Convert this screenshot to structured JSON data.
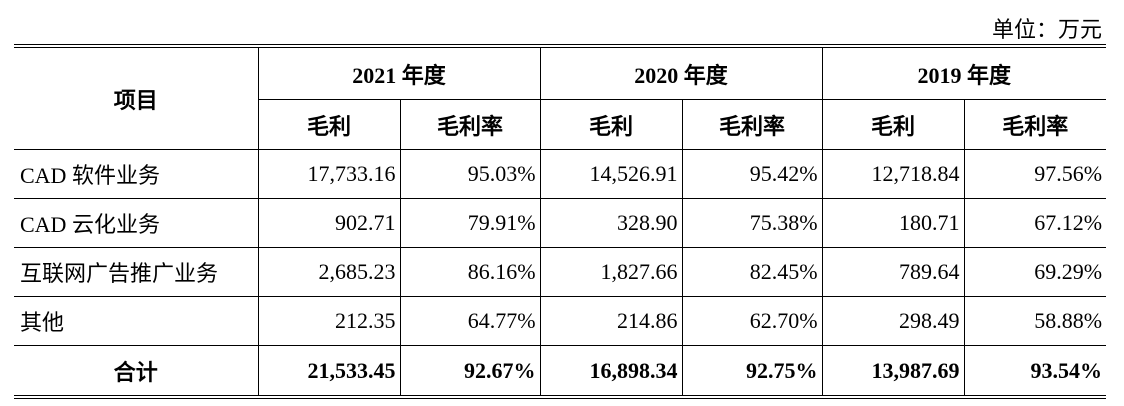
{
  "unit_label": "单位：万元",
  "header": {
    "item": "项目",
    "years": [
      "2021 年度",
      "2020 年度",
      "2019 年度"
    ],
    "gross_profit": "毛利",
    "gross_margin": "毛利率"
  },
  "rows": [
    {
      "name": "CAD 软件业务",
      "v": [
        "17,733.16",
        "95.03%",
        "14,526.91",
        "95.42%",
        "12,718.84",
        "97.56%"
      ]
    },
    {
      "name": "CAD 云化业务",
      "v": [
        "902.71",
        "79.91%",
        "328.90",
        "75.38%",
        "180.71",
        "67.12%"
      ]
    },
    {
      "name": "互联网广告推广业务",
      "v": [
        "2,685.23",
        "86.16%",
        "1,827.66",
        "82.45%",
        "789.64",
        "69.29%"
      ]
    },
    {
      "name": "其他",
      "v": [
        "212.35",
        "64.77%",
        "214.86",
        "62.70%",
        "298.49",
        "58.88%"
      ]
    }
  ],
  "total": {
    "name": "合计",
    "v": [
      "21,533.45",
      "92.67%",
      "16,898.34",
      "92.75%",
      "13,987.69",
      "93.54%"
    ]
  }
}
